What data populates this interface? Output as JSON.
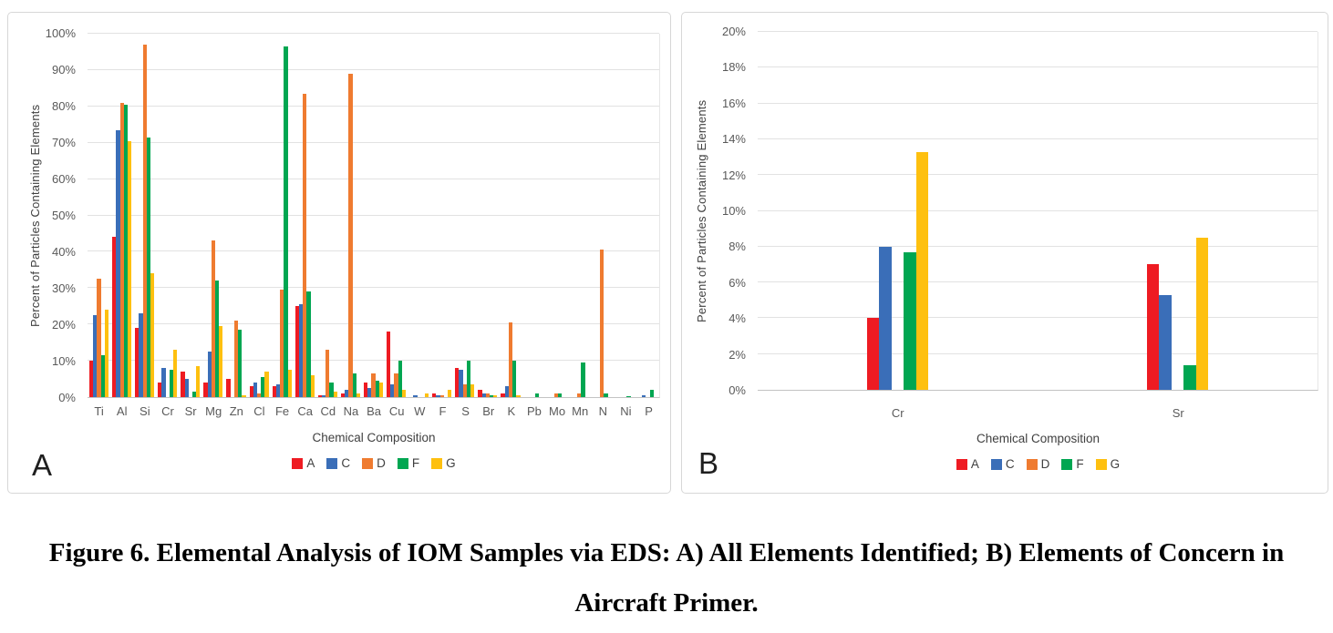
{
  "figure": {
    "caption": "Figure 6. Elemental Analysis of IOM Samples via EDS: A) All Elements Identified; B) Elements of Concern in Aircraft Primer."
  },
  "panels": [
    {
      "letter": "A"
    },
    {
      "letter": "B"
    }
  ],
  "chart_data": [
    {
      "type": "bar",
      "panel": "A",
      "title": "",
      "xlabel": "Chemical Composition",
      "ylabel": "Percent of Particles Containing Elements",
      "ylim": [
        0,
        100
      ],
      "ytick_step": 10,
      "ytick_suffix": "%",
      "grid": true,
      "legend_position": "bottom",
      "categories": [
        "Ti",
        "Al",
        "Si",
        "Cr",
        "Sr",
        "Mg",
        "Zn",
        "Cl",
        "Fe",
        "Ca",
        "Cd",
        "Na",
        "Ba",
        "Cu",
        "W",
        "F",
        "S",
        "Br",
        "K",
        "Pb",
        "Mo",
        "Mn",
        "N",
        "Ni",
        "P"
      ],
      "series": [
        {
          "name": "A",
          "color": "#ee1b22",
          "values": [
            10,
            44,
            19,
            4,
            7,
            4,
            5,
            3,
            3,
            25,
            0.5,
            1,
            4,
            18,
            0,
            1,
            8,
            2,
            1,
            0,
            0,
            0,
            0,
            0,
            0
          ]
        },
        {
          "name": "C",
          "color": "#3a6eb8",
          "values": [
            22.5,
            73.5,
            23,
            8,
            5,
            12.5,
            0,
            4,
            3.5,
            25.5,
            0.5,
            2,
            2.5,
            3.5,
            0.5,
            0.5,
            7.5,
            1,
            3,
            0,
            0,
            0,
            0,
            0,
            0.5
          ]
        },
        {
          "name": "D",
          "color": "#ef7b30",
          "values": [
            32.5,
            81,
            97,
            0,
            0,
            43,
            21,
            1,
            29.5,
            83.5,
            13,
            89,
            6.5,
            6.5,
            0,
            0.5,
            3.5,
            1,
            20.5,
            0,
            1,
            1,
            40.5,
            0,
            0
          ]
        },
        {
          "name": "F",
          "color": "#00a651",
          "values": [
            11.5,
            80.5,
            71.5,
            7.5,
            1.5,
            32,
            18.5,
            5.5,
            96.5,
            29,
            4,
            6.5,
            4.5,
            10,
            0,
            0,
            10,
            0.5,
            10,
            1,
            1,
            9.5,
            1,
            0.3,
            2
          ]
        },
        {
          "name": "G",
          "color": "#fec00f",
          "values": [
            24,
            70.5,
            34,
            13,
            8.5,
            19.5,
            0.5,
            7,
            7.5,
            6,
            1.5,
            1,
            4,
            2,
            1,
            2,
            3.5,
            0.5,
            0.5,
            0,
            0,
            0,
            0,
            0,
            0
          ]
        }
      ]
    },
    {
      "type": "bar",
      "panel": "B",
      "title": "",
      "xlabel": "Chemical Composition",
      "ylabel": "Percent of Particles Containing Elements",
      "ylim": [
        0,
        20
      ],
      "ytick_step": 2,
      "ytick_suffix": "%",
      "grid": true,
      "legend_position": "bottom",
      "categories": [
        "Cr",
        "Sr"
      ],
      "series": [
        {
          "name": "A",
          "color": "#ee1b22",
          "values": [
            4.0,
            7.0
          ]
        },
        {
          "name": "C",
          "color": "#3a6eb8",
          "values": [
            8.0,
            5.3
          ]
        },
        {
          "name": "D",
          "color": "#ef7b30",
          "values": [
            0,
            0
          ]
        },
        {
          "name": "F",
          "color": "#00a651",
          "values": [
            7.7,
            1.4
          ]
        },
        {
          "name": "G",
          "color": "#fec00f",
          "values": [
            13.3,
            8.5
          ]
        }
      ]
    }
  ]
}
